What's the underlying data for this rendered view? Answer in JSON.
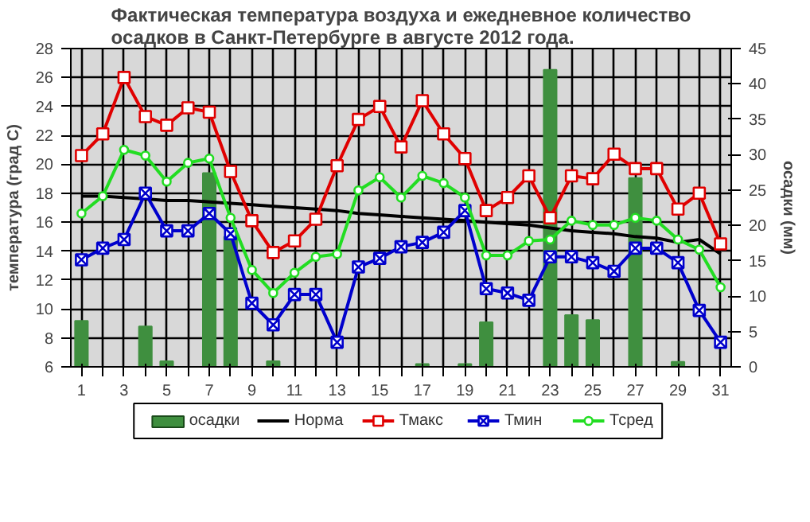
{
  "chart_data": {
    "type": "line",
    "title": "Фактическая температура воздуха и ежедневное количество осадков в Санкт-Петербурге в августе 2012 года.",
    "ylabel": "температура (град С)",
    "y2label": "осадки (мм)",
    "x": [
      1,
      2,
      3,
      4,
      5,
      6,
      7,
      8,
      9,
      10,
      11,
      12,
      13,
      14,
      15,
      16,
      17,
      18,
      19,
      20,
      21,
      22,
      23,
      24,
      25,
      26,
      27,
      28,
      29,
      30,
      31
    ],
    "xlim": [
      0.5,
      31.5
    ],
    "xticks": [
      1,
      {
        "value": 2,
        "label": null
      },
      3,
      {
        "value": 4,
        "label": null
      },
      5,
      {
        "value": 6,
        "label": null
      },
      7,
      {
        "value": 8,
        "label": null
      },
      9,
      {
        "value": 10,
        "label": null
      },
      11,
      {
        "value": 12,
        "label": null
      },
      13,
      {
        "value": 14,
        "label": null
      },
      15,
      {
        "value": 16,
        "label": null
      },
      17,
      {
        "value": 18,
        "label": null
      },
      19,
      {
        "value": 20,
        "label": null
      },
      21,
      {
        "value": 22,
        "label": null
      },
      23,
      {
        "value": 24,
        "label": null
      },
      25,
      {
        "value": 26,
        "label": null
      },
      27,
      {
        "value": 28,
        "label": null
      },
      29,
      {
        "value": 30,
        "label": null
      },
      31
    ],
    "ylim": [
      6,
      28
    ],
    "yticks": [
      6,
      8,
      10,
      12,
      14,
      16,
      18,
      20,
      22,
      24,
      26,
      28
    ],
    "y2lim": [
      0,
      45
    ],
    "y2ticks": [
      0,
      5,
      10,
      15,
      20,
      25,
      30,
      35,
      40,
      45
    ],
    "grid": true,
    "legend": "bottom",
    "series": [
      {
        "name": "осадки",
        "type": "bar",
        "axis": "y2",
        "color": "#3f8f3f",
        "values": [
          6.5,
          0,
          0,
          5.7,
          0.8,
          0,
          27.4,
          18.4,
          0,
          0.8,
          0,
          0,
          0,
          0,
          0,
          0,
          0.4,
          0,
          0.4,
          6.3,
          0,
          0,
          42,
          7.3,
          6.6,
          0,
          26.7,
          0,
          0.7,
          0,
          0
        ]
      },
      {
        "name": "Норма",
        "color": "#000000",
        "marker": "none",
        "values": [
          17.8,
          17.8,
          17.7,
          17.6,
          17.5,
          17.5,
          17.4,
          17.3,
          17.2,
          17.1,
          17.0,
          16.9,
          16.8,
          16.6,
          16.5,
          16.4,
          16.3,
          16.2,
          16.1,
          16.0,
          15.9,
          15.8,
          15.6,
          15.4,
          15.3,
          15.2,
          15.0,
          14.9,
          14.6,
          14.8,
          13.8
        ]
      },
      {
        "name": "Тмакс",
        "color": "#e00000",
        "marker": "square",
        "values": [
          20.6,
          22.1,
          26.0,
          23.3,
          22.7,
          23.9,
          23.6,
          19.5,
          16.1,
          13.9,
          14.7,
          16.2,
          19.9,
          23.1,
          24.0,
          21.2,
          24.4,
          22.1,
          20.4,
          16.8,
          17.7,
          19.2,
          16.3,
          19.2,
          19.0,
          20.7,
          19.7,
          19.7,
          16.9,
          18.0,
          14.5
        ]
      },
      {
        "name": "Тмин",
        "color": "#0000cc",
        "marker": "cross",
        "values": [
          13.4,
          14.2,
          14.8,
          18.0,
          15.4,
          15.4,
          16.6,
          15.2,
          10.4,
          8.9,
          11.0,
          11.0,
          7.7,
          12.9,
          13.5,
          14.3,
          14.6,
          15.3,
          16.8,
          11.4,
          11.1,
          10.6,
          13.6,
          13.6,
          13.2,
          12.6,
          14.2,
          14.2,
          13.2,
          9.9,
          7.7
        ]
      },
      {
        "name": "Тсред",
        "color": "#22dd22",
        "marker": "circle",
        "values": [
          16.6,
          17.8,
          21.0,
          20.6,
          18.8,
          20.1,
          20.4,
          16.3,
          12.7,
          11.1,
          12.5,
          13.6,
          13.8,
          18.2,
          19.1,
          17.7,
          19.2,
          18.7,
          17.7,
          13.7,
          13.7,
          14.7,
          14.8,
          16.1,
          15.8,
          15.8,
          16.3,
          16.1,
          14.8,
          14.1,
          11.5
        ]
      }
    ]
  }
}
